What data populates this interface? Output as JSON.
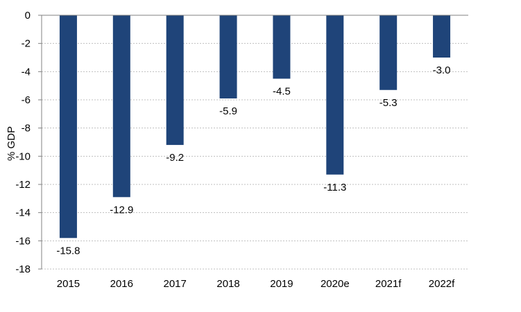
{
  "chart_data": {
    "type": "bar",
    "categories": [
      "2015",
      "2016",
      "2017",
      "2018",
      "2019",
      "2020e",
      "2021f",
      "2022f"
    ],
    "values": [
      -15.8,
      -12.9,
      -9.2,
      -5.9,
      -4.5,
      -11.3,
      -5.3,
      -3.0
    ],
    "data_labels": [
      "-15.8",
      "-12.9",
      "-9.2",
      "-5.9",
      "-4.5",
      "-11.3",
      "-5.3",
      "-3.0"
    ],
    "ylabel": "% GDP",
    "xlabel": "",
    "ylim": [
      -18,
      0
    ],
    "yticks": [
      0,
      -2,
      -4,
      -6,
      -8,
      -10,
      -12,
      -14,
      -16,
      -18
    ],
    "ytick_labels": [
      "0",
      "-2",
      "-4",
      "-6",
      "-8",
      "-10",
      "-12",
      "-14",
      "-16",
      "-18"
    ],
    "grid": true,
    "bar_color": "#1f4479",
    "grid_color": "#bfbfbf",
    "axis_color": "#808080"
  }
}
